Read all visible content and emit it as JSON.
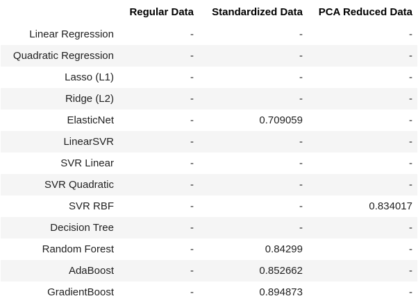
{
  "table": {
    "columns": [
      "Regular Data",
      "Standardized Data",
      "PCA Reduced Data"
    ],
    "rows": [
      {
        "label": "Linear Regression",
        "values": [
          "-",
          "-",
          "-"
        ]
      },
      {
        "label": "Quadratic Regression",
        "values": [
          "-",
          "-",
          "-"
        ]
      },
      {
        "label": "Lasso (L1)",
        "values": [
          "-",
          "-",
          "-"
        ]
      },
      {
        "label": "Ridge (L2)",
        "values": [
          "-",
          "-",
          "-"
        ]
      },
      {
        "label": "ElasticNet",
        "values": [
          "-",
          "0.709059",
          "-"
        ]
      },
      {
        "label": "LinearSVR",
        "values": [
          "-",
          "-",
          "-"
        ]
      },
      {
        "label": "SVR Linear",
        "values": [
          "-",
          "-",
          "-"
        ]
      },
      {
        "label": "SVR Quadratic",
        "values": [
          "-",
          "-",
          "-"
        ]
      },
      {
        "label": "SVR RBF",
        "values": [
          "-",
          "-",
          "0.834017"
        ]
      },
      {
        "label": "Decision Tree",
        "values": [
          "-",
          "-",
          "-"
        ]
      },
      {
        "label": "Random Forest",
        "values": [
          "-",
          "0.84299",
          "-"
        ]
      },
      {
        "label": "AdaBoost",
        "values": [
          "-",
          "0.852662",
          "-"
        ]
      },
      {
        "label": "GradientBoost",
        "values": [
          "-",
          "0.894873",
          "-"
        ]
      }
    ]
  },
  "colors": {
    "striped_row_background": "#f5f5f5",
    "background": "#ffffff",
    "text": "#1f1f1f"
  }
}
